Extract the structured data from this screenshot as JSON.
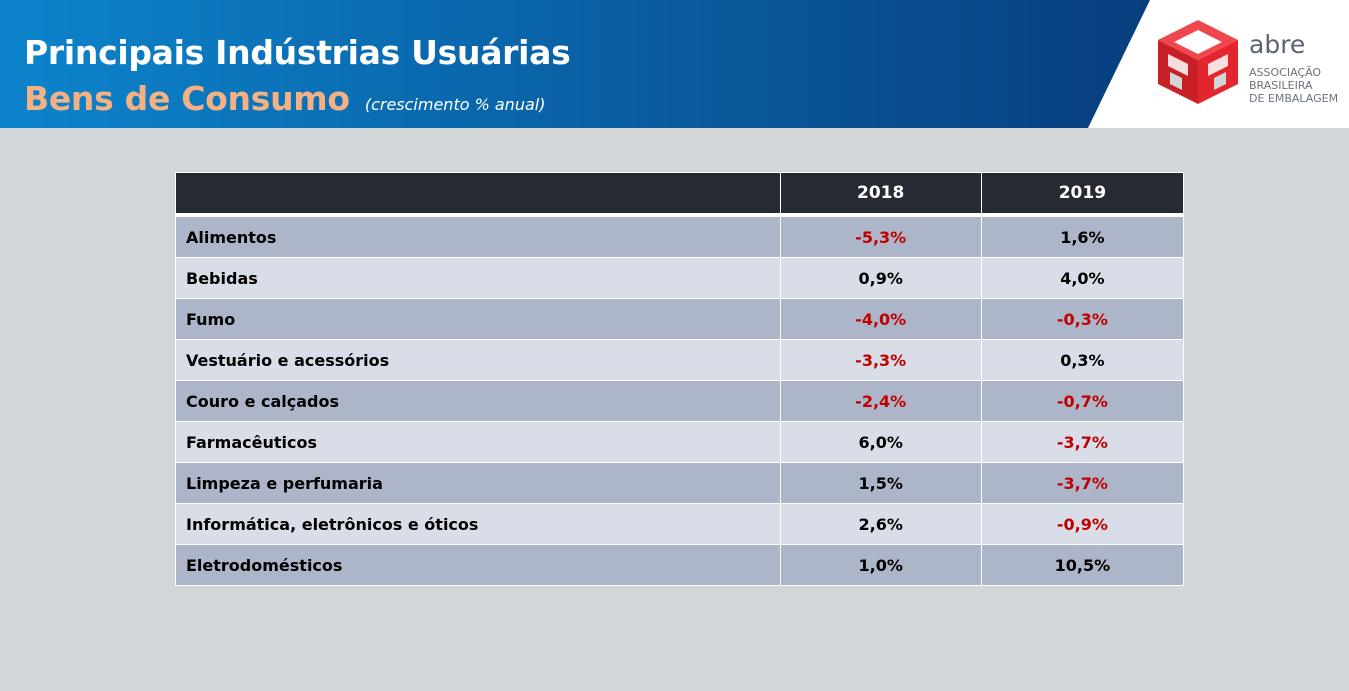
{
  "header": {
    "title": "Principais Indústrias Usuárias",
    "subtitle": "Bens de Consumo",
    "note": "(crescimento % anual)",
    "banner_color_start": "#0c84cc",
    "banner_color_end": "#083e7e",
    "subtitle_color": "#f4b183"
  },
  "logo": {
    "name": "abre",
    "tagline": [
      "ASSOCIAÇÃO",
      "BRASILEIRA",
      "DE EMBALAGEM"
    ],
    "icon": "red-cube-logo-icon",
    "color": "#e3262e"
  },
  "table": {
    "headers": [
      "",
      "2018",
      "2019"
    ],
    "negative_color": "#c00000",
    "rows": [
      {
        "label": "Alimentos",
        "v2018": "-5,3%",
        "v2019": "1,6%"
      },
      {
        "label": "Bebidas",
        "v2018": "0,9%",
        "v2019": "4,0%"
      },
      {
        "label": "Fumo",
        "v2018": "-4,0%",
        "v2019": "-0,3%"
      },
      {
        "label": "Vestuário e acessórios",
        "v2018": "-3,3%",
        "v2019": "0,3%"
      },
      {
        "label": "Couro e calçados",
        "v2018": "-2,4%",
        "v2019": "-0,7%"
      },
      {
        "label": "Farmacêuticos",
        "v2018": "6,0%",
        "v2019": "-3,7%"
      },
      {
        "label": "Limpeza e perfumaria",
        "v2018": "1,5%",
        "v2019": "-3,7%"
      },
      {
        "label": "Informática, eletrônicos e óticos",
        "v2018": "2,6%",
        "v2019": "-0,9%"
      },
      {
        "label": "Eletrodomésticos",
        "v2018": "1,0%",
        "v2019": "10,5%"
      }
    ]
  }
}
